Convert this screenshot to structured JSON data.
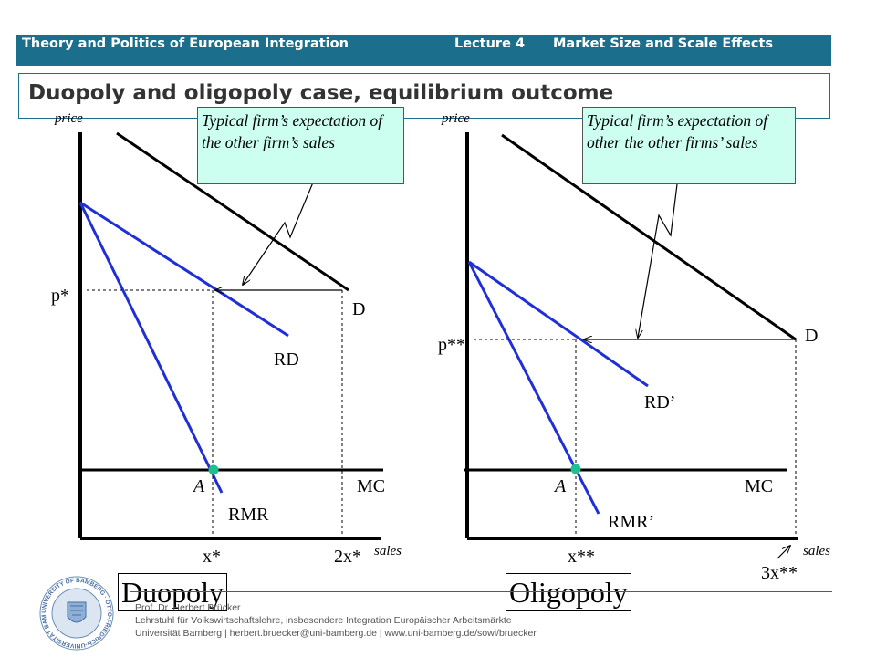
{
  "header": {
    "course": "Theory and Politics of European Integration",
    "lecture": "Lecture 4",
    "topic": "Market Size and Scale Effects"
  },
  "slide_title": "Duopoly and oligopoly case, equilibrium outcome",
  "left_panel": {
    "axis_y_label": "price",
    "axis_x_label": "sales",
    "price_label": "p*",
    "curve_demand": "D",
    "curve_residual_demand": "RD",
    "curve_residual_mr": "RMR",
    "marginal_cost": "MC",
    "point_label": "A",
    "quantity_label": "x*",
    "market_quantity_label": "2x*",
    "callout": "Typical firm’s expectation of the other firm’s sales",
    "case_label": "Duopoly"
  },
  "right_panel": {
    "axis_y_label": "price",
    "axis_x_label": "sales",
    "price_label": "p**",
    "curve_demand": "D",
    "curve_residual_demand": "RD’",
    "curve_residual_mr": "RMR’",
    "marginal_cost": "MC",
    "point_label": "A",
    "quantity_label": "x**",
    "market_quantity_label": "3x**",
    "callout": "Typical firm’s expectation of other the other firms’ sales",
    "case_label": "Oligopoly"
  },
  "footer": {
    "author": "Prof. Dr. Herbert Brücker",
    "chair": "Lehrstuhl für Volkswirtschaftslehre, insbesondere Integration Europäischer Arbeitsmärkte",
    "contact": "Universität Bamberg | herbert.bruecker@uni-bamberg.de | www.uni-bamberg.de/sowi/bruecker"
  },
  "logo": {
    "text": "UNIVERSITY OF BAMBERG · OTTO-FRIEDRICH-UNIVERSITÄT BAMBERG"
  },
  "colors": {
    "header": "#1b6e8c",
    "residual_curves": "#1f2fd6",
    "equilibrium_point": "#1fbf8f",
    "callout_fill": "#ccfff0"
  }
}
